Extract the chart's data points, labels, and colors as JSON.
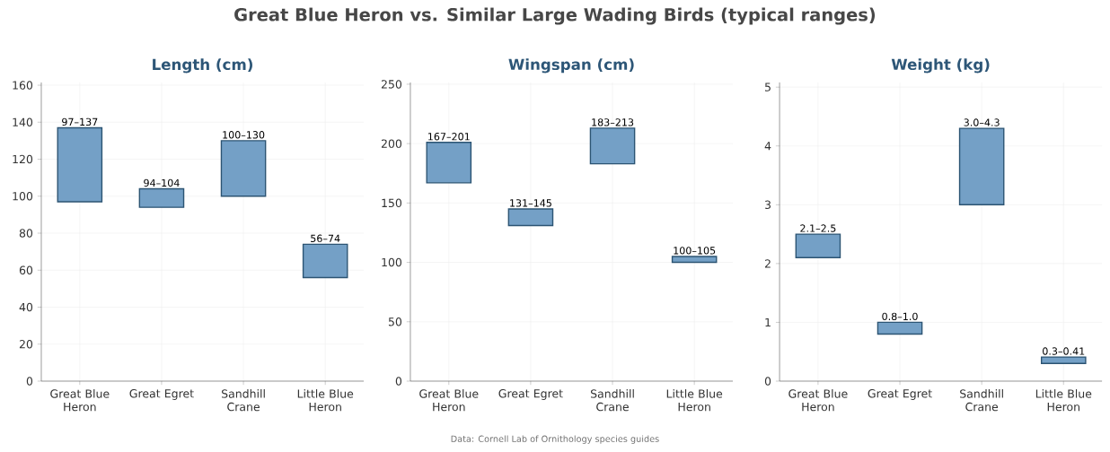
{
  "chart_data": [
    {
      "type": "other",
      "title": "Great Blue Heron vs. Similar Large Wading Birds (typical ranges)",
      "annotations": [
        "Data: Cornell Lab of Ornithology species guides"
      ]
    },
    {
      "type": "bar",
      "title": "Length (cm)",
      "categories": [
        "Great Blue Heron",
        "Great Egret",
        "Sandhill Crane",
        "Little Blue Heron"
      ],
      "base": [
        97,
        94,
        100,
        56
      ],
      "values": [
        40,
        10,
        30,
        18
      ],
      "value_labels": [
        "97–137",
        "94–104",
        "100–130",
        "56–74"
      ],
      "color": "#6d9bc3",
      "ylim": [
        0,
        161.5
      ],
      "yticks": [
        0,
        20,
        40,
        60,
        80,
        100,
        120,
        140,
        160
      ],
      "grid": true
    },
    {
      "type": "bar",
      "title": "Wingspan (cm)",
      "categories": [
        "Great Blue Heron",
        "Great Egret",
        "Sandhill Crane",
        "Little Blue Heron"
      ],
      "base": [
        167,
        131,
        183,
        100
      ],
      "values": [
        34,
        14,
        30,
        5
      ],
      "value_labels": [
        "167–201",
        "131–145",
        "183–213",
        "100–105"
      ],
      "color": "#6d9bc3",
      "ylim": [
        0,
        251.5
      ],
      "yticks": [
        0,
        50,
        100,
        150,
        200,
        250
      ],
      "grid": true
    },
    {
      "type": "bar",
      "title": "Weight (kg)",
      "categories": [
        "Great Blue Heron",
        "Great Egret",
        "Sandhill Crane",
        "Little Blue Heron"
      ],
      "base": [
        2.1,
        0.8,
        3.0,
        0.3
      ],
      "values": [
        0.4,
        0.2,
        1.3,
        0.11
      ],
      "value_labels": [
        "2.1–2.5",
        "0.8–1.0",
        "3.0–4.3",
        "0.3–0.41"
      ],
      "color": "#6d9bc3",
      "ylim": [
        0,
        5.08
      ],
      "yticks": [
        0,
        1,
        2,
        3,
        4,
        5
      ],
      "grid": true
    }
  ]
}
